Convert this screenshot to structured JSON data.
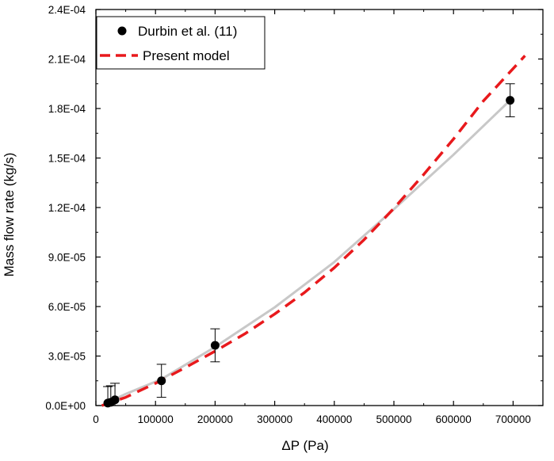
{
  "chart_data": {
    "type": "scatter",
    "title": "",
    "xlabel": "ΔP (Pa)",
    "ylabel": "Mass flow rate (kg/s)",
    "xlim": [
      0,
      750000
    ],
    "ylim": [
      0,
      0.00024
    ],
    "x_ticks": [
      0,
      100000,
      200000,
      300000,
      400000,
      500000,
      600000,
      700000
    ],
    "x_tick_labels": [
      "0",
      "100000",
      "200000",
      "300000",
      "400000",
      "500000",
      "600000",
      "700000"
    ],
    "y_ticks": [
      0,
      3e-05,
      6e-05,
      9e-05,
      0.00012,
      0.00015,
      0.00018,
      0.00021,
      0.00024
    ],
    "y_tick_labels": [
      "0.0E+00",
      "3.0E-05",
      "6.0E-05",
      "9.0E-05",
      "1.2E-04",
      "1.5E-04",
      "1.8E-04",
      "2.1E-04",
      "2.4E-04"
    ],
    "grid": false,
    "legend_position": "top-left",
    "series": [
      {
        "name": "Durbin et al. (11)",
        "kind": "points",
        "color": "#000000",
        "points": [
          {
            "x": 20000,
            "y": 1.5e-06,
            "err": 1e-05
          },
          {
            "x": 25000,
            "y": 2e-06,
            "err": 1e-05
          },
          {
            "x": 32000,
            "y": 3.5e-06,
            "err": 1e-05
          },
          {
            "x": 110000,
            "y": 1.5e-05,
            "err": 1e-05
          },
          {
            "x": 200000,
            "y": 3.65e-05,
            "err": 1e-05
          },
          {
            "x": 695000,
            "y": 0.000185,
            "err": 1e-05
          }
        ]
      },
      {
        "name": "Present model",
        "kind": "dashed-line",
        "color": "#e8191c",
        "x": [
          10000,
          50000,
          100000,
          150000,
          200000,
          250000,
          300000,
          350000,
          400000,
          450000,
          500000,
          550000,
          600000,
          650000,
          720000
        ],
        "y": [
          0,
          5e-06,
          1.35e-05,
          2.3e-05,
          3.3e-05,
          4.35e-05,
          5.55e-05,
          6.85e-05,
          8.35e-05,
          0.0001005,
          0.0001195,
          0.00014,
          0.0001615,
          0.0001845,
          0.000212
        ]
      },
      {
        "kind": "smooth-line",
        "color": "#c8c8c8",
        "x": [
          15000,
          50000,
          110000,
          200000,
          300000,
          400000,
          500000,
          600000,
          695000
        ],
        "y": [
          1e-06,
          7e-06,
          1.6e-05,
          3.55e-05,
          5.95e-05,
          8.7e-05,
          0.000119,
          0.000152,
          0.000185
        ]
      }
    ]
  }
}
